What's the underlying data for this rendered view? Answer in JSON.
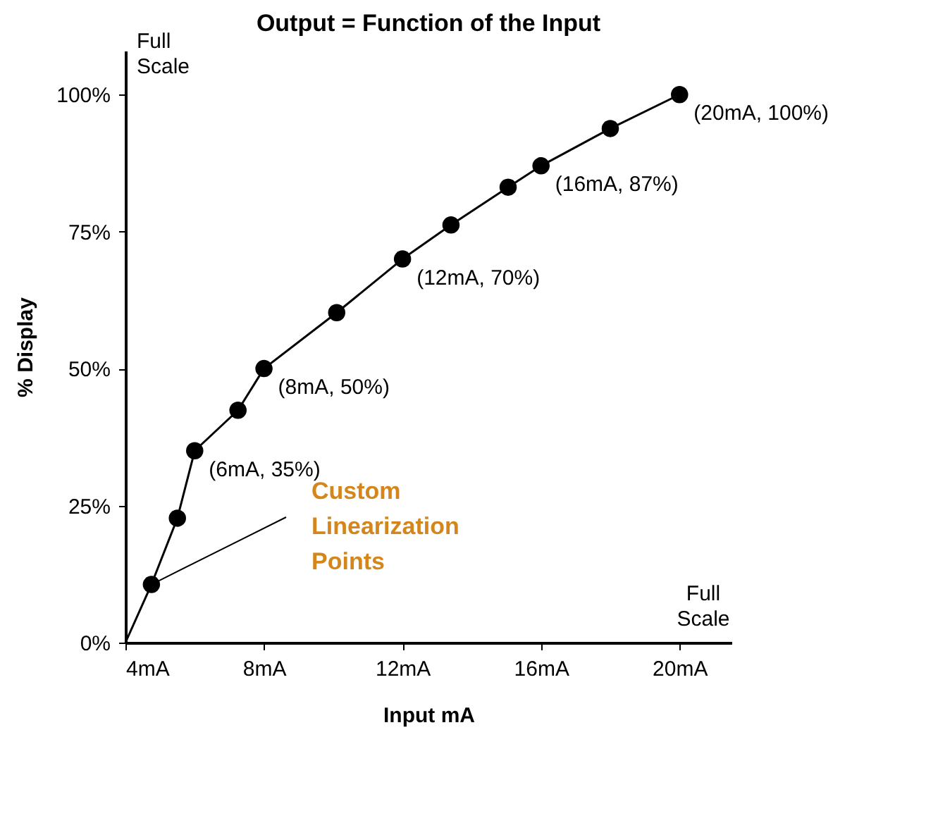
{
  "chart_data": {
    "type": "line",
    "title": "Output = Function of the Input",
    "xlabel": "Input mA",
    "ylabel": "% Display",
    "xlim": [
      4,
      21.5
    ],
    "ylim": [
      0,
      108
    ],
    "xticks": [
      {
        "value": 4,
        "label": "4mA"
      },
      {
        "value": 8,
        "label": "8mA"
      },
      {
        "value": 12,
        "label": "12mA"
      },
      {
        "value": 16,
        "label": "16mA"
      },
      {
        "value": 20,
        "label": "20mA"
      }
    ],
    "yticks": [
      {
        "value": 0,
        "label": "0%"
      },
      {
        "value": 25,
        "label": "25%"
      },
      {
        "value": 50,
        "label": "50%"
      },
      {
        "value": 75,
        "label": "75%"
      },
      {
        "value": 100,
        "label": "100%"
      }
    ],
    "grid": false,
    "series": [
      {
        "color": "#000000",
        "marker": "none",
        "x": [
          4,
          4.75,
          5.5,
          6,
          7.25,
          8,
          10.1,
          12,
          13.4,
          15.05,
          16,
          18,
          20
        ],
        "values": [
          0,
          10.6,
          22.7,
          35,
          42.4,
          50,
          60.2,
          70,
          76.2,
          83.1,
          87,
          93.8,
          100
        ]
      },
      {
        "type": "scatter",
        "color": "#000000",
        "marker": "circle",
        "x": [
          4.75,
          5.5,
          6,
          7.25,
          8,
          10.1,
          12,
          13.4,
          15.05,
          16,
          18,
          20
        ],
        "values": [
          10.6,
          22.7,
          35,
          42.4,
          50,
          60.2,
          70,
          76.2,
          83.1,
          87,
          93.8,
          100
        ],
        "value_labels": [
          null,
          null,
          "(6mA, 35%)",
          null,
          "(8mA, 50%)",
          null,
          "(12mA, 70%)",
          null,
          null,
          "(16mA, 87%)",
          null,
          "(20mA, 100%)"
        ]
      }
    ],
    "annotations": [
      "Full Scale",
      "Full Scale",
      {
        "text": "Custom Linearization Points",
        "x": 4.75,
        "y": 10.6
      }
    ]
  }
}
